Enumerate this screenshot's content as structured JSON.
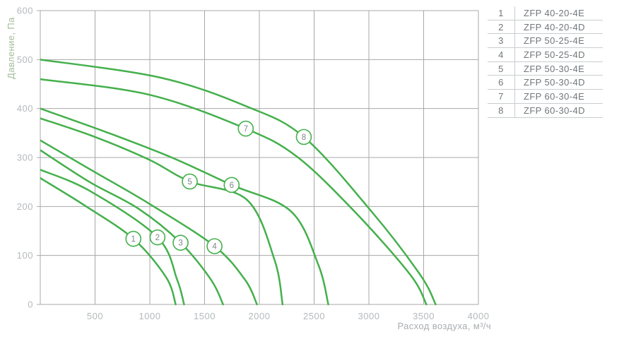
{
  "colors": {
    "curve_green": "#44b04c",
    "grid_gray": "#a8a8a8",
    "tick_label_gray": "#b5b9bb",
    "x_title_gray": "#a9adb0",
    "y_title_green": "#a3bd99",
    "legend_text_gray": "#71777a",
    "legend_border_gray": "#c9cdcf",
    "curve_label_text_gray": "#7e8588",
    "background": "#ffffff"
  },
  "chart_data": {
    "type": "line",
    "title": "",
    "xlabel": "Расход воздуха, м³/ч",
    "ylabel": "Давление, Па",
    "xlim": [
      0,
      4000
    ],
    "ylim": [
      0,
      600
    ],
    "x_ticks": [
      500,
      1000,
      1500,
      2000,
      2500,
      3000,
      3500,
      4000
    ],
    "y_ticks": [
      0,
      100,
      200,
      300,
      400,
      500,
      600
    ],
    "grid": true,
    "legend_position": "right-table",
    "series": [
      {
        "num": "1",
        "name": "ZFP 40-20-4E",
        "points": [
          [
            0,
            258
          ],
          [
            406,
            202
          ],
          [
            850,
            134
          ],
          [
            1150,
            55
          ],
          [
            1236,
            0
          ]
        ],
        "label_point": [
          850,
          134
        ]
      },
      {
        "num": "2",
        "name": "ZFP 40-20-4D",
        "points": [
          [
            0,
            275
          ],
          [
            450,
            232
          ],
          [
            1070,
            137
          ],
          [
            1250,
            50
          ],
          [
            1313,
            0
          ]
        ],
        "label_point": [
          1070,
          137
        ]
      },
      {
        "num": "3",
        "name": "ZFP 50-25-4E",
        "points": [
          [
            0,
            315
          ],
          [
            450,
            250
          ],
          [
            900,
            195
          ],
          [
            1281,
            126
          ],
          [
            1560,
            50
          ],
          [
            1669,
            0
          ]
        ],
        "label_point": [
          1281,
          126
        ]
      },
      {
        "num": "4",
        "name": "ZFP 50-25-4D",
        "points": [
          [
            0,
            335
          ],
          [
            500,
            270
          ],
          [
            1000,
            205
          ],
          [
            1591,
            119
          ],
          [
            1870,
            50
          ],
          [
            1979,
            0
          ]
        ],
        "label_point": [
          1591,
          119
        ]
      },
      {
        "num": "5",
        "name": "ZFP 50-30-4E",
        "points": [
          [
            0,
            380
          ],
          [
            500,
            342
          ],
          [
            1000,
            295
          ],
          [
            1365,
            251
          ],
          [
            1890,
            213
          ],
          [
            2140,
            90
          ],
          [
            2212,
            0
          ]
        ],
        "label_point": [
          1365,
          251
        ]
      },
      {
        "num": "6",
        "name": "ZFP 50-30-4D",
        "points": [
          [
            0,
            400
          ],
          [
            600,
            352
          ],
          [
            1200,
            300
          ],
          [
            1747,
            244
          ],
          [
            2290,
            190
          ],
          [
            2540,
            80
          ],
          [
            2630,
            0
          ]
        ],
        "label_point": [
          1747,
          244
        ]
      },
      {
        "num": "7",
        "name": "ZFP 60-30-4E",
        "points": [
          [
            0,
            460
          ],
          [
            1000,
            428
          ],
          [
            1876,
            359
          ],
          [
            2348,
            301
          ],
          [
            2885,
            186
          ],
          [
            3380,
            60
          ],
          [
            3525,
            0
          ]
        ],
        "label_point": [
          1876,
          359
        ]
      },
      {
        "num": "8",
        "name": "ZFP 60-30-4D",
        "points": [
          [
            0,
            500
          ],
          [
            1100,
            463
          ],
          [
            1876,
            405
          ],
          [
            2406,
            342
          ],
          [
            3027,
            189
          ],
          [
            3470,
            60
          ],
          [
            3610,
            0
          ]
        ],
        "label_point": [
          2406,
          342
        ]
      }
    ]
  },
  "legend": {
    "rows": [
      {
        "num": "1",
        "model": "ZFP 40-20-4E"
      },
      {
        "num": "2",
        "model": "ZFP 40-20-4D"
      },
      {
        "num": "3",
        "model": "ZFP 50-25-4E"
      },
      {
        "num": "4",
        "model": "ZFP 50-25-4D"
      },
      {
        "num": "5",
        "model": "ZFP 50-30-4E"
      },
      {
        "num": "6",
        "model": "ZFP 50-30-4D"
      },
      {
        "num": "7",
        "model": "ZFP 60-30-4E"
      },
      {
        "num": "8",
        "model": "ZFP 60-30-4D"
      }
    ]
  }
}
